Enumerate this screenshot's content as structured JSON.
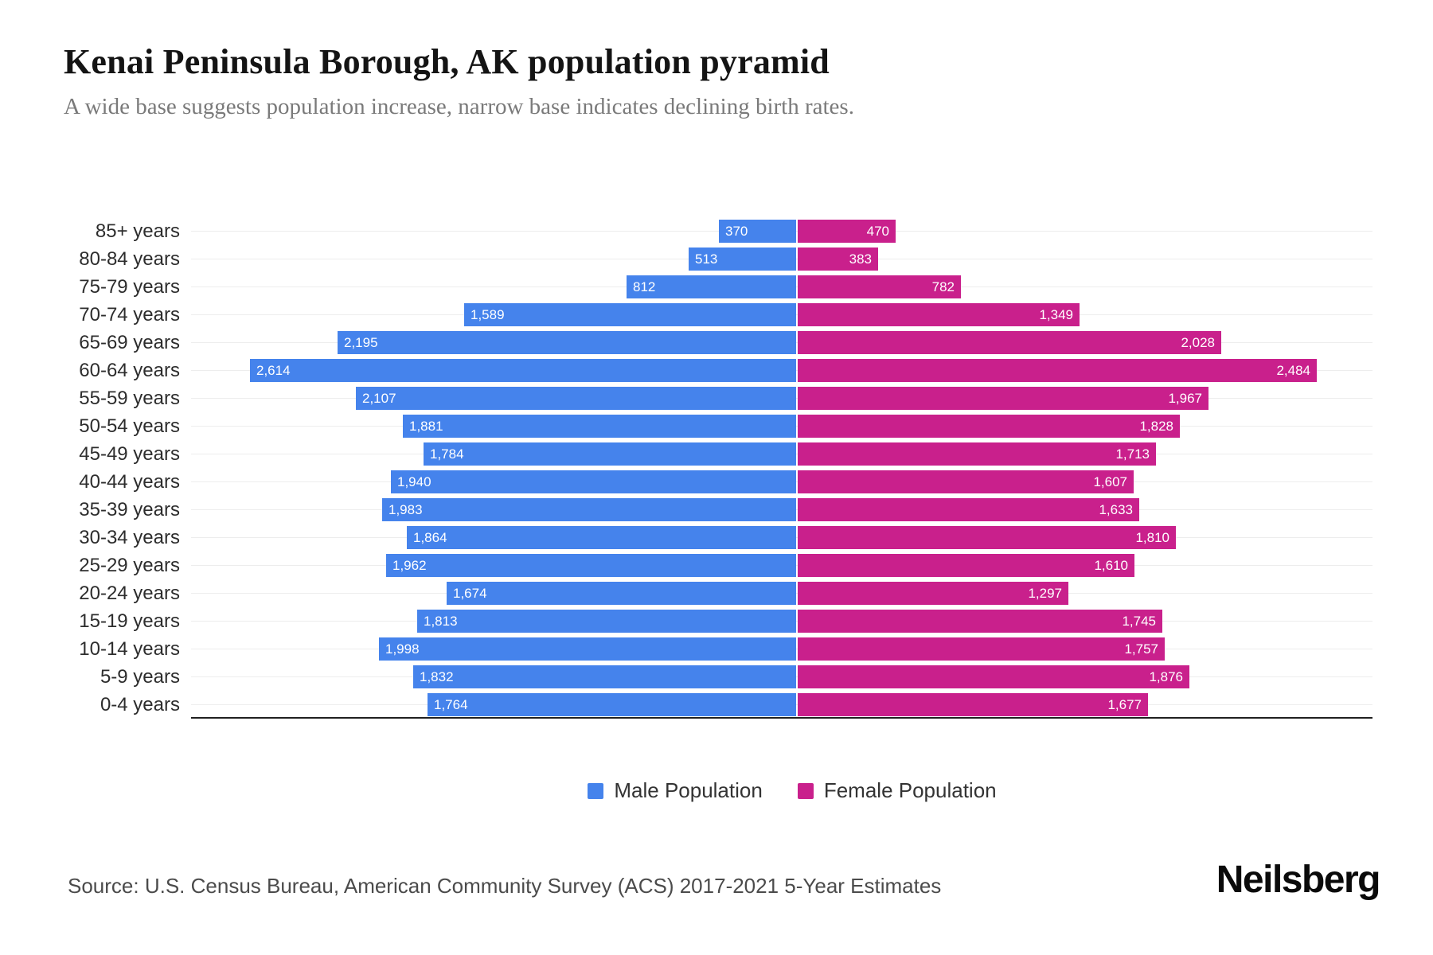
{
  "header": {
    "title": "Kenai Peninsula Borough, AK population pyramid",
    "subtitle": "A wide base suggests population increase, narrow base indicates declining birth rates."
  },
  "chart_data": {
    "type": "bar",
    "variant": "population-pyramid",
    "title": "Kenai Peninsula Borough, AK population pyramid",
    "categories": [
      "85+ years",
      "80-84 years",
      "75-79 years",
      "70-74 years",
      "65-69 years",
      "60-64 years",
      "55-59 years",
      "50-54 years",
      "45-49 years",
      "40-44 years",
      "35-39 years",
      "30-34 years",
      "25-29 years",
      "20-24 years",
      "15-19 years",
      "10-14 years",
      "5-9 years",
      "0-4 years"
    ],
    "series": [
      {
        "name": "Male Population",
        "side": "left",
        "color": "#4583EC",
        "values": [
          370,
          513,
          812,
          1589,
          2195,
          2614,
          2107,
          1881,
          1784,
          1940,
          1983,
          1864,
          1962,
          1674,
          1813,
          1998,
          1832,
          1764
        ],
        "display_values": [
          "370",
          "513",
          "812",
          "1,589",
          "2,195",
          "2,614",
          "2,107",
          "1,881",
          "1,784",
          "1,940",
          "1,983",
          "1,864",
          "1,962",
          "1,674",
          "1,813",
          "1,998",
          "1,832",
          "1,764"
        ]
      },
      {
        "name": "Female Population",
        "side": "right",
        "color": "#C9208C",
        "values": [
          470,
          383,
          782,
          1349,
          2028,
          2484,
          1967,
          1828,
          1713,
          1607,
          1633,
          1810,
          1610,
          1297,
          1745,
          1757,
          1876,
          1677
        ],
        "display_values": [
          "470",
          "383",
          "782",
          "1,349",
          "2,028",
          "2,484",
          "1,967",
          "1,828",
          "1,713",
          "1,607",
          "1,633",
          "1,810",
          "1,610",
          "1,297",
          "1,745",
          "1,757",
          "1,876",
          "1,677"
        ]
      }
    ],
    "value_axis_max_hint": 2900,
    "grid": true,
    "legend_position": "bottom",
    "colors": {
      "male": "#4583EC",
      "female": "#C9208C",
      "gridline": "#ededed",
      "axis": "#1f1f1f"
    }
  },
  "legend": {
    "items": [
      {
        "label": "Male Population",
        "color": "#4583EC"
      },
      {
        "label": "Female Population",
        "color": "#C9208C"
      }
    ]
  },
  "footer": {
    "source": "Source: U.S. Census Bureau, American Community Survey (ACS) 2017-2021 5-Year Estimates",
    "brand": "Neilsberg"
  }
}
